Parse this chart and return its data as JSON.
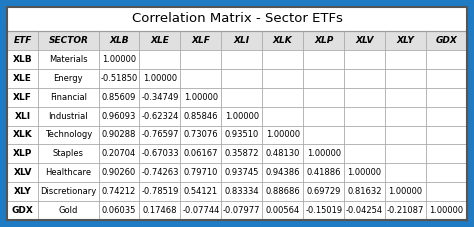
{
  "title": "Correlation Matrix - Sector ETFs",
  "col_headers": [
    "ETF",
    "SECTOR",
    "XLB",
    "XLE",
    "XLF",
    "XLI",
    "XLK",
    "XLP",
    "XLV",
    "XLY",
    "GDX"
  ],
  "rows": [
    [
      "XLB",
      "Materials",
      "1.00000",
      "",
      "",
      "",
      "",
      "",
      "",
      "",
      ""
    ],
    [
      "XLE",
      "Energy",
      "-0.51850",
      "1.00000",
      "",
      "",
      "",
      "",
      "",
      "",
      ""
    ],
    [
      "XLF",
      "Financial",
      "0.85609",
      "-0.34749",
      "1.00000",
      "",
      "",
      "",
      "",
      "",
      ""
    ],
    [
      "XLI",
      "Industrial",
      "0.96093",
      "-0.62324",
      "0.85846",
      "1.00000",
      "",
      "",
      "",
      "",
      ""
    ],
    [
      "XLK",
      "Technology",
      "0.90288",
      "-0.76597",
      "0.73076",
      "0.93510",
      "1.00000",
      "",
      "",
      "",
      ""
    ],
    [
      "XLP",
      "Staples",
      "0.20704",
      "-0.67033",
      "0.06167",
      "0.35872",
      "0.48130",
      "1.00000",
      "",
      "",
      ""
    ],
    [
      "XLV",
      "Healthcare",
      "0.90260",
      "-0.74263",
      "0.79710",
      "0.93745",
      "0.94386",
      "0.41886",
      "1.00000",
      "",
      ""
    ],
    [
      "XLY",
      "Discretionary",
      "0.74212",
      "-0.78519",
      "0.54121",
      "0.83334",
      "0.88686",
      "0.69729",
      "0.81632",
      "1.00000",
      ""
    ],
    [
      "GDX",
      "Gold",
      "0.06035",
      "0.17468",
      "-0.07744",
      "-0.07977",
      "0.00564",
      "-0.15019",
      "-0.04254",
      "-0.21087",
      "1.00000"
    ]
  ],
  "outer_bg_color": "#1E7BC4",
  "inner_border_color": "#555555",
  "table_line_color": "#AAAAAA",
  "header_bg": "#E0E0E0",
  "row_bg": "#FFFFFF",
  "title_fontsize": 9.5,
  "header_fontsize": 6.5,
  "cell_fontsize": 6.0,
  "etf_fontsize": 6.5,
  "col_widths_rel": [
    0.65,
    1.25,
    0.85,
    0.85,
    0.85,
    0.85,
    0.85,
    0.85,
    0.85,
    0.85,
    0.85
  ]
}
